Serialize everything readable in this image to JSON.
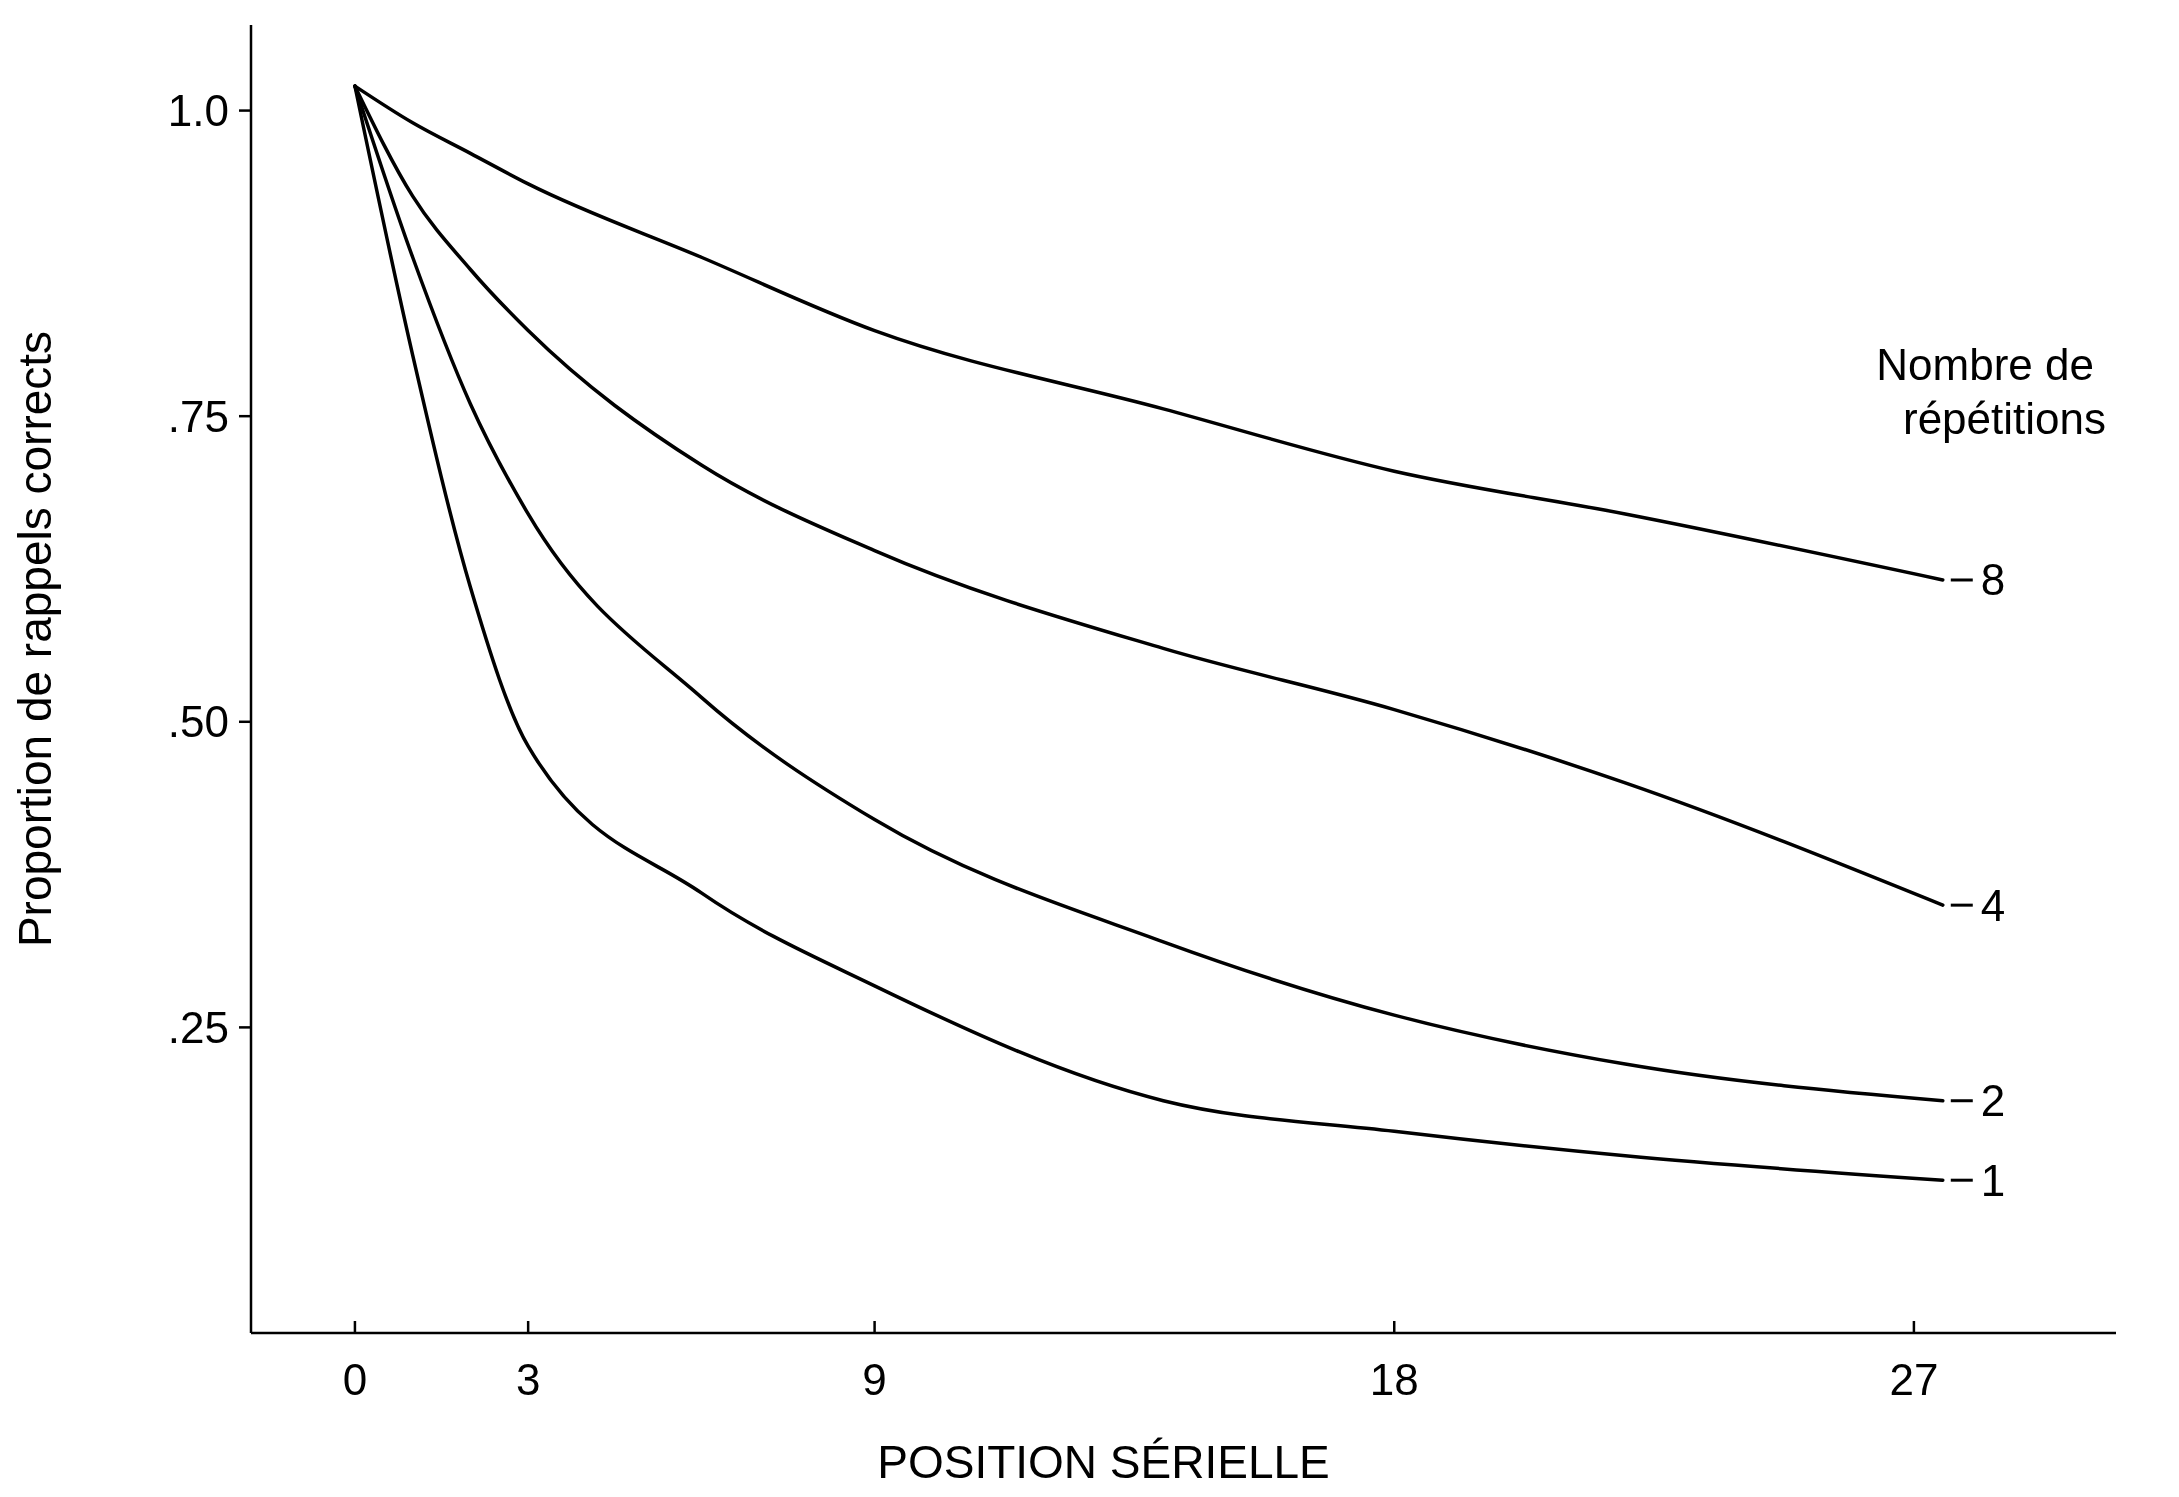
{
  "chart_data": {
    "type": "line",
    "xlabel": "POSITION SÉRIELLE",
    "ylabel": "Proportion de rappels corrects",
    "legend_title": "Nombre de répétitions",
    "xlim": [
      -1.8,
      30.5
    ],
    "xticks": [
      0,
      3,
      9,
      18,
      27
    ],
    "ylim": [
      0,
      1.07
    ],
    "yticks": [
      {
        "value": 0.25,
        "label": ".25"
      },
      {
        "value": 0.5,
        "label": ".50"
      },
      {
        "value": 0.75,
        "label": ".75"
      },
      {
        "value": 1,
        "label": "1.0"
      }
    ],
    "grid": false,
    "legend": "right",
    "marker": "none",
    "line_style": "solid",
    "x": [
      0,
      1,
      2,
      3,
      6,
      9,
      14,
      18,
      22,
      27.5
    ],
    "series": [
      {
        "name": "8",
        "color": "#000000",
        "values": [
          1.02,
          0.99,
          0.965,
          0.94,
          0.88,
          0.82,
          0.756,
          0.705,
          0.67,
          0.616
        ]
      },
      {
        "name": "4",
        "color": "#000000",
        "values": [
          1.02,
          0.93,
          0.87,
          0.82,
          0.71,
          0.64,
          0.56,
          0.51,
          0.45,
          0.35
        ]
      },
      {
        "name": "2",
        "color": "#000000",
        "values": [
          1.02,
          0.88,
          0.76,
          0.67,
          0.52,
          0.42,
          0.32,
          0.26,
          0.22,
          0.19
        ]
      },
      {
        "name": "1",
        "color": "#000000",
        "values": [
          1.02,
          0.8,
          0.61,
          0.48,
          0.36,
          0.284,
          0.19,
          0.165,
          0.145,
          0.125
        ]
      }
    ]
  }
}
